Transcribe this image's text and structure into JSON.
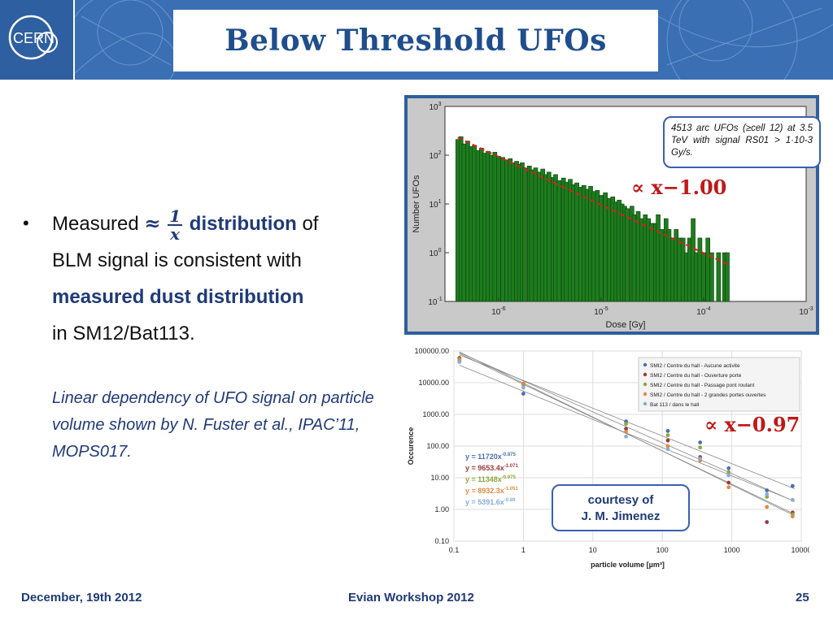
{
  "header": {
    "logo_text": "CERN",
    "title": "Below Threshold UFOs"
  },
  "bullet": {
    "marker": "•",
    "measured": "Measured",
    "approx": "≈",
    "frac_num": "1",
    "frac_den": "x",
    "distribution": "distribution",
    "of": "of",
    "line2": "BLM signal is consistent with",
    "line3": "measured dust distribution",
    "line4": "in SM12/Bat113."
  },
  "note": "Linear dependency of UFO signal on particle volume shown by N. Fuster et al., IPAC’11, MOPS017.",
  "chart_top_annotation": "4513 arc UFOs (≥cell 12) at 3.5 TeV with signal RS01 > 1·10-3 Gy/s.",
  "prop_top": "∝ x−1.00",
  "prop_bottom": "∝ x−0.97",
  "courtesy": {
    "line1": "courtesy of",
    "line2": "J. M. Jimenez"
  },
  "footer": {
    "date": "December, 19th 2012",
    "event": "Evian Workshop 2012",
    "page": "25"
  },
  "colors": {
    "banner": "#3a6fb4",
    "title": "#1f4e8c",
    "accent_text": "#1f3a78",
    "bar_fill": "#1e7d1e",
    "fit_line": "#d62020"
  },
  "chart_data": [
    {
      "type": "bar",
      "xlabel": "Dose [Gy]",
      "ylabel": "Number UFOs",
      "xscale": "log",
      "yscale": "log",
      "xlim": [
        3e-07,
        0.001
      ],
      "ylim": [
        0.1,
        1000
      ],
      "x_ticks": [
        "10-6",
        "10-5",
        "10-4",
        "10-3"
      ],
      "y_ticks": [
        "10-1",
        "100",
        "101",
        "102",
        "103"
      ],
      "annotation": "4513 arc UFOs (≥cell 12) at 3.5 TeV with signal RS01 > 1·10-3 Gy/s.",
      "fit_label": "∝ x−1.00",
      "x": [
        4e-07,
        4.3e-07,
        4.6e-07,
        5e-07,
        5.4e-07,
        5.8e-07,
        6.3e-07,
        6.8e-07,
        7.3e-07,
        7.9e-07,
        8.5e-07,
        9.2e-07,
        1e-06,
        1.1e-06,
        1.2e-06,
        1.3e-06,
        1.4e-06,
        1.5e-06,
        1.6e-06,
        1.7e-06,
        1.8e-06,
        2e-06,
        2.1e-06,
        2.3e-06,
        2.5e-06,
        2.7e-06,
        2.9e-06,
        3.1e-06,
        3.4e-06,
        3.6e-06,
        3.9e-06,
        4.3e-06,
        4.6e-06,
        5e-06,
        5.4e-06,
        5.8e-06,
        6.3e-06,
        6.8e-06,
        7.3e-06,
        7.9e-06,
        8.5e-06,
        9.2e-06,
        1e-05,
        1.1e-05,
        1.2e-05,
        1.3e-05,
        1.4e-05,
        1.5e-05,
        1.6e-05,
        1.7e-05,
        1.8e-05,
        2e-05,
        2.1e-05,
        2.3e-05,
        2.5e-05,
        2.7e-05,
        2.9e-05,
        3.1e-05,
        3.4e-05,
        3.6e-05,
        3.9e-05,
        4.3e-05,
        4.6e-05,
        5e-05,
        5.4e-05,
        5.8e-05,
        6.3e-05,
        6.8e-05,
        7.3e-05,
        7.9e-05,
        8.5e-05,
        9.2e-05,
        0.0001,
        0.00011,
        0.00012,
        0.00013,
        0.00014,
        0.00016,
        0.00017
      ],
      "values": [
        210,
        240,
        170,
        195,
        150,
        160,
        125,
        140,
        110,
        120,
        100,
        115,
        95,
        90,
        80,
        85,
        70,
        75,
        65,
        70,
        55,
        60,
        50,
        55,
        45,
        52,
        40,
        45,
        35,
        40,
        30,
        34,
        28,
        32,
        25,
        27,
        22,
        24,
        20,
        23,
        18,
        19,
        15,
        17,
        13,
        14,
        11,
        12,
        10,
        9,
        8,
        9,
        6,
        7,
        5,
        6,
        5,
        4,
        4,
        6,
        3,
        5,
        3,
        2,
        3,
        2,
        2,
        1,
        2,
        5,
        1,
        2,
        1,
        2,
        1,
        0,
        1,
        1,
        1
      ]
    },
    {
      "type": "scatter",
      "xlabel": "particle volume [µm³]",
      "ylabel": "Occurence",
      "xscale": "log",
      "yscale": "log",
      "xlim": [
        0.1,
        10000
      ],
      "ylim": [
        0.1,
        100000
      ],
      "x_ticks": [
        "0.1",
        "1",
        "10",
        "100",
        "1000",
        "10000"
      ],
      "y_ticks": [
        "100000.00",
        "10000.00",
        "1000.00",
        "100.00",
        "10.00",
        "1.00",
        "0.10"
      ],
      "series": [
        {
          "name": "SMI2 / Centre du hall - Aucune activite",
          "color": "#4a6fb0",
          "fit": "y = 11720x-0.875",
          "points": [
            [
              0.12,
              50000
            ],
            [
              1,
              4500
            ],
            [
              30,
              600
            ],
            [
              120,
              300
            ],
            [
              350,
              130
            ],
            [
              900,
              20
            ],
            [
              3200,
              4
            ],
            [
              7500,
              5.5
            ]
          ]
        },
        {
          "name": "SMI2 / Centre du hall - Ouverture porte",
          "color": "#9a3a3a",
          "fit": "y = 9653.4x-1.071",
          "points": [
            [
              0.12,
              60000
            ],
            [
              1,
              9000
            ],
            [
              30,
              350
            ],
            [
              120,
              150
            ],
            [
              350,
              45
            ],
            [
              900,
              7
            ],
            [
              3200,
              0.4
            ],
            [
              7500,
              0.8
            ]
          ]
        },
        {
          "name": "SMI2 / Centre du hall - Passage pont roulant",
          "color": "#8aa83a",
          "fit": "y = 11348x-0.975",
          "points": [
            [
              0.12,
              55000
            ],
            [
              1,
              8500
            ],
            [
              30,
              500
            ],
            [
              120,
              220
            ],
            [
              350,
              90
            ],
            [
              900,
              15
            ],
            [
              3200,
              2.5
            ],
            [
              7500,
              0.7
            ]
          ]
        },
        {
          "name": "SMI2 / Centre du hall - 2 grandes portes ouvertes",
          "color": "#e08a40",
          "fit": "y = 8932.3x-1.051",
          "points": [
            [
              0.12,
              52000
            ],
            [
              1,
              9500
            ],
            [
              30,
              280
            ],
            [
              120,
              100
            ],
            [
              350,
              35
            ],
            [
              900,
              5
            ],
            [
              3200,
              1.2
            ],
            [
              7500,
              0.6
            ]
          ]
        },
        {
          "name": "Bat 113 / dans le hall",
          "color": "#8aaad8",
          "fit": "y = 5391.6x-0.89",
          "points": [
            [
              0.12,
              45000
            ],
            [
              1,
              7000
            ],
            [
              30,
              200
            ],
            [
              120,
              80
            ],
            [
              350,
              40
            ],
            [
              900,
              12
            ],
            [
              3200,
              3
            ],
            [
              7500,
              2
            ]
          ]
        }
      ],
      "fit_label": "∝ x−0.97"
    }
  ]
}
